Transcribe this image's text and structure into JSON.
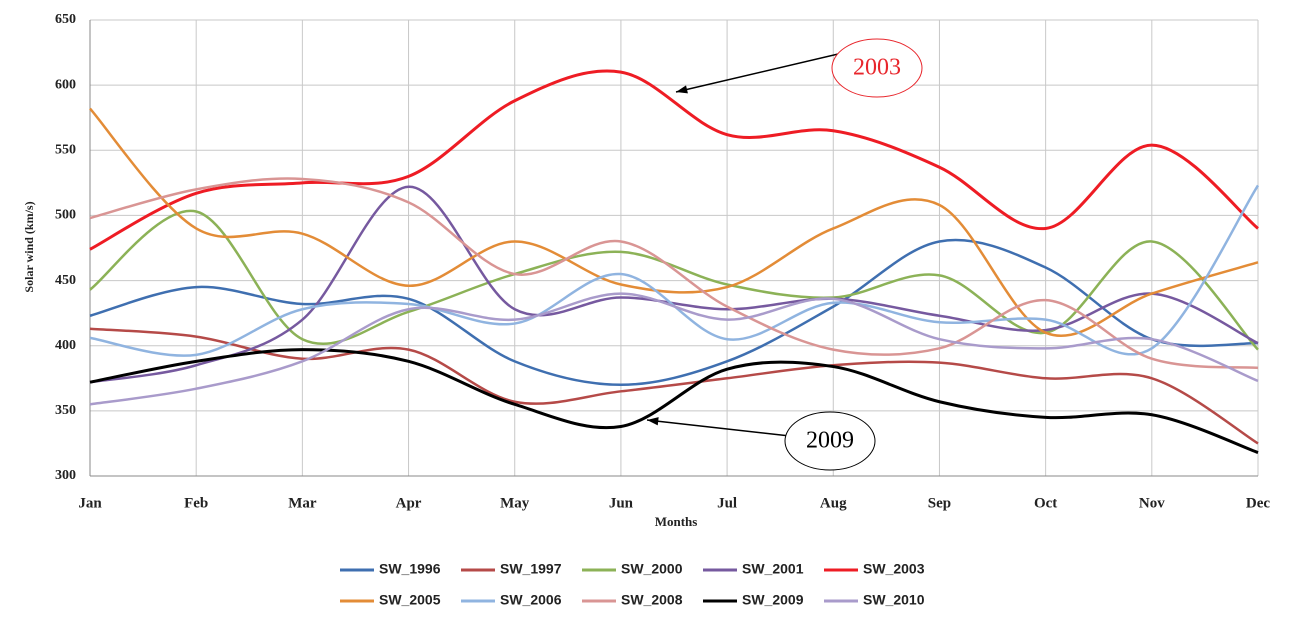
{
  "chart_data": {
    "type": "line",
    "x_label": "Months",
    "y_label": "Solar wind (km/s)",
    "categories": [
      "Jan",
      "Feb",
      "Mar",
      "Apr",
      "May",
      "Jun",
      "Jul",
      "Aug",
      "Sep",
      "Oct",
      "Nov",
      "Dec"
    ],
    "ylim": [
      300,
      650
    ],
    "yticks": [
      300,
      350,
      400,
      450,
      500,
      550,
      600,
      650
    ],
    "grid": true,
    "annotations": [
      {
        "text": "2003",
        "color": "#e8262c"
      },
      {
        "text": "2009",
        "color": "#000000"
      }
    ],
    "series": [
      {
        "name": "SW_1996",
        "color": "#3f6fb0",
        "values": [
          423,
          445,
          432,
          436,
          388,
          370,
          388,
          430,
          480,
          460,
          405,
          402
        ]
      },
      {
        "name": "SW_1997",
        "color": "#b54a48",
        "values": [
          413,
          407,
          390,
          397,
          357,
          365,
          375,
          385,
          387,
          375,
          375,
          325
        ]
      },
      {
        "name": "SW_2000",
        "color": "#8cb257",
        "values": [
          443,
          503,
          405,
          426,
          455,
          472,
          447,
          437,
          454,
          410,
          480,
          397
        ]
      },
      {
        "name": "SW_2001",
        "color": "#76599f",
        "values": [
          372,
          385,
          420,
          522,
          428,
          437,
          428,
          436,
          423,
          412,
          440,
          402
        ]
      },
      {
        "name": "SW_2003",
        "color": "#ee1c24",
        "values": [
          474,
          517,
          525,
          530,
          588,
          610,
          562,
          565,
          537,
          490,
          554,
          490
        ]
      },
      {
        "name": "SW_2005",
        "color": "#e38c37",
        "values": [
          582,
          490,
          486,
          446,
          480,
          447,
          445,
          490,
          508,
          410,
          440,
          464
        ]
      },
      {
        "name": "SW_2006",
        "color": "#90b4e0",
        "values": [
          406,
          393,
          428,
          432,
          417,
          455,
          405,
          433,
          418,
          420,
          398,
          523
        ]
      },
      {
        "name": "SW_2008",
        "color": "#d99594",
        "values": [
          498,
          520,
          528,
          510,
          455,
          480,
          430,
          397,
          398,
          435,
          390,
          383
        ]
      },
      {
        "name": "SW_2009",
        "color": "#000000",
        "values": [
          372,
          388,
          397,
          388,
          355,
          338,
          382,
          384,
          357,
          345,
          347,
          318
        ]
      },
      {
        "name": "SW_2010",
        "color": "#a99bcb",
        "values": [
          355,
          367,
          388,
          428,
          420,
          440,
          420,
          436,
          405,
          398,
          405,
          373
        ]
      }
    ]
  }
}
